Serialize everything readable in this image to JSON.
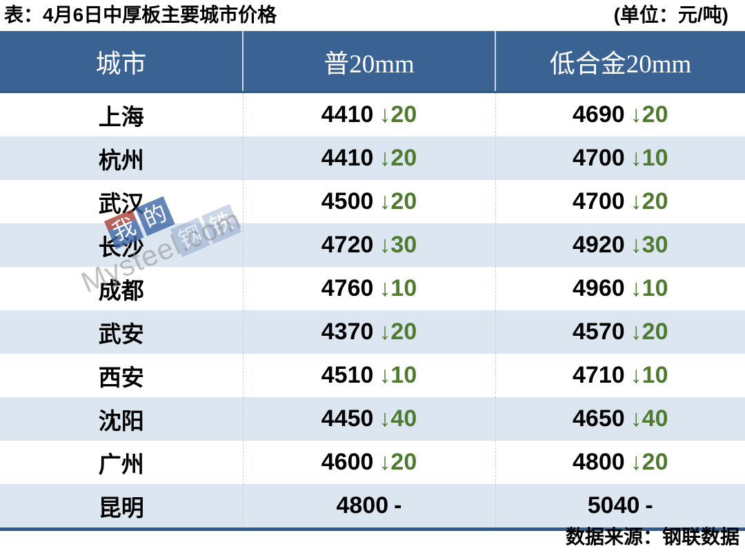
{
  "page": {
    "title": "表：4月6日中厚板主要城市价格",
    "unit": "(单位：元/吨)",
    "source": "数据来源：钢联数据"
  },
  "chart_data": {
    "type": "table",
    "title": "4月6日中厚板主要城市价格",
    "unit": "元/吨",
    "columns": [
      "城市",
      "普20mm",
      "低合金20mm"
    ],
    "rows": [
      {
        "city": "上海",
        "p20mm": 4410,
        "p20mm_change": -20,
        "lowalloy20mm": 4690,
        "lowalloy20mm_change": -20
      },
      {
        "city": "杭州",
        "p20mm": 4410,
        "p20mm_change": -20,
        "lowalloy20mm": 4700,
        "lowalloy20mm_change": -10
      },
      {
        "city": "武汉",
        "p20mm": 4500,
        "p20mm_change": -20,
        "lowalloy20mm": 4700,
        "lowalloy20mm_change": -20
      },
      {
        "city": "长沙",
        "p20mm": 4720,
        "p20mm_change": -30,
        "lowalloy20mm": 4920,
        "lowalloy20mm_change": -30
      },
      {
        "city": "成都",
        "p20mm": 4760,
        "p20mm_change": -10,
        "lowalloy20mm": 4960,
        "lowalloy20mm_change": -10
      },
      {
        "city": "武安",
        "p20mm": 4370,
        "p20mm_change": -20,
        "lowalloy20mm": 4570,
        "lowalloy20mm_change": -20
      },
      {
        "city": "西安",
        "p20mm": 4510,
        "p20mm_change": -10,
        "lowalloy20mm": 4710,
        "lowalloy20mm_change": -10
      },
      {
        "city": "沈阳",
        "p20mm": 4450,
        "p20mm_change": -40,
        "lowalloy20mm": 4650,
        "lowalloy20mm_change": -40
      },
      {
        "city": "广州",
        "p20mm": 4600,
        "p20mm_change": -20,
        "lowalloy20mm": 4800,
        "lowalloy20mm_change": -20
      },
      {
        "city": "昆明",
        "p20mm": 4800,
        "p20mm_change": null,
        "lowalloy20mm": 5040,
        "lowalloy20mm_change": null
      }
    ],
    "source": "数据来源：钢联数据",
    "down_arrow_glyph": "↓",
    "no_change_glyph": "-"
  },
  "watermark": {
    "text": "Mysteel.com",
    "logo_chars": [
      "我",
      "的",
      "钢",
      "铁"
    ]
  },
  "colors": {
    "header_bg": "#3A6394",
    "row_alt_bg": "#DCE6F1",
    "change_down_green": "#4E7B2F",
    "bottom_line": "#2F5A8C",
    "watermark_blue": "#3D67A6",
    "watermark_red": "#A93E36"
  }
}
